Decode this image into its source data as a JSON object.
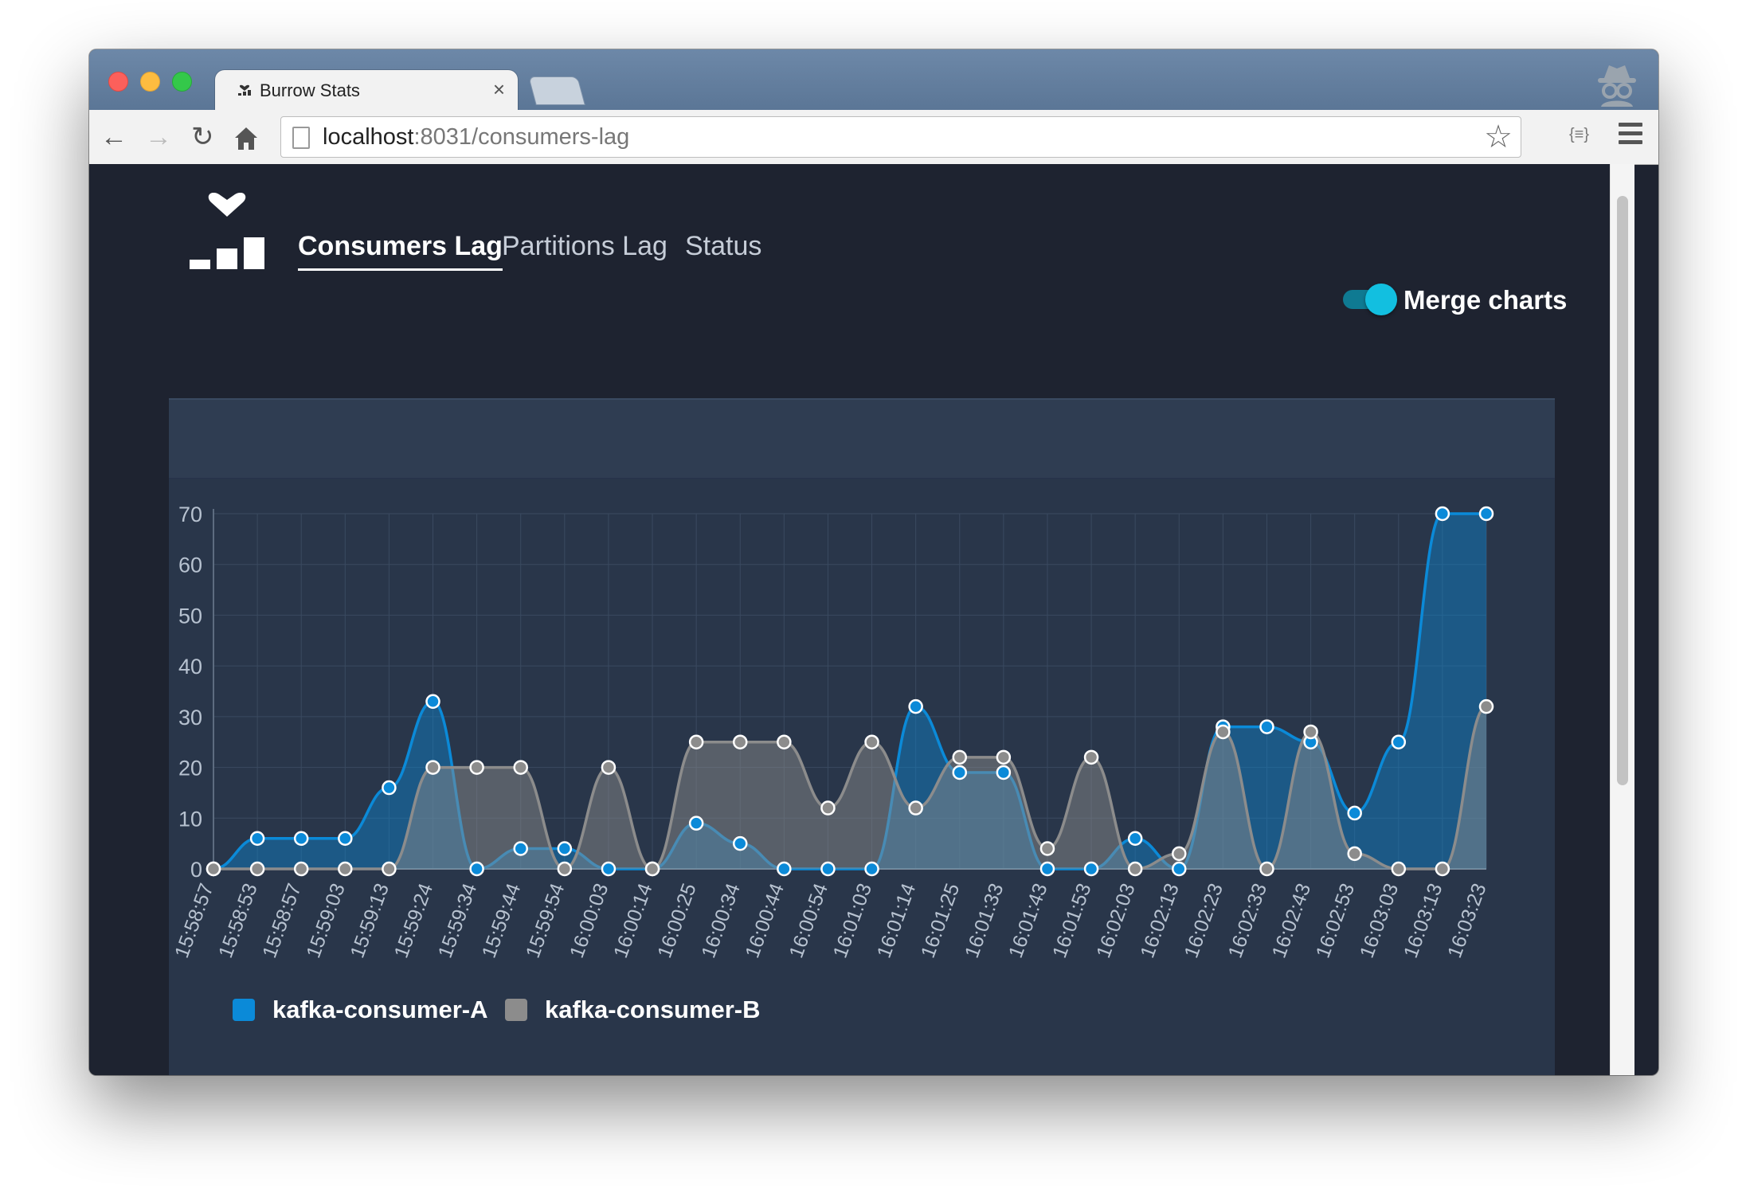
{
  "browser": {
    "tab_title": "Burrow Stats",
    "tab_close": "×",
    "url_host": "localhost",
    "url_rest": ":8031/consumers-lag",
    "ext_label": "{≡}"
  },
  "nav": {
    "items": [
      {
        "label": "Consumers Lag",
        "active": true
      },
      {
        "label": "Partitions Lag",
        "active": false
      },
      {
        "label": "Status",
        "active": false
      }
    ]
  },
  "merge_toggle": {
    "label": "Merge charts",
    "checked": true
  },
  "colors": {
    "series_a": "#0b8ad8",
    "series_b": "#8c8c8c",
    "accent": "#12bfe0",
    "panel_bg": "#29364a",
    "page_bg": "#1e2330"
  },
  "chart_data": {
    "type": "area",
    "title": "",
    "xlabel": "",
    "ylabel": "",
    "ylim": [
      0,
      70
    ],
    "yticks": [
      0,
      10,
      20,
      30,
      40,
      50,
      60,
      70
    ],
    "grid": true,
    "legend_position": "bottom-left",
    "x": [
      "15:58:57",
      "15:58:53",
      "15:58:57",
      "15:59:03",
      "15:59:13",
      "15:59:24",
      "15:59:34",
      "15:59:44",
      "15:59:54",
      "16:00:03",
      "16:00:14",
      "16:00:25",
      "16:00:34",
      "16:00:44",
      "16:00:54",
      "16:01:03",
      "16:01:14",
      "16:01:25",
      "16:01:33",
      "16:01:43",
      "16:01:53",
      "16:02:03",
      "16:02:13",
      "16:02:23",
      "16:02:33",
      "16:02:43",
      "16:02:53",
      "16:03:03",
      "16:03:13",
      "16:03:23"
    ],
    "series": [
      {
        "name": "kafka-consumer-A",
        "color": "#0b8ad8",
        "values": [
          0,
          6,
          6,
          6,
          16,
          33,
          0,
          4,
          4,
          0,
          0,
          9,
          5,
          0,
          0,
          0,
          32,
          19,
          19,
          0,
          0,
          6,
          0,
          28,
          28,
          25,
          11,
          25,
          70,
          70
        ]
      },
      {
        "name": "kafka-consumer-B",
        "color": "#8c8c8c",
        "values": [
          0,
          0,
          0,
          0,
          0,
          20,
          20,
          20,
          0,
          20,
          0,
          25,
          25,
          25,
          12,
          25,
          12,
          22,
          22,
          4,
          22,
          0,
          3,
          27,
          0,
          27,
          3,
          0,
          0,
          32
        ]
      }
    ]
  }
}
